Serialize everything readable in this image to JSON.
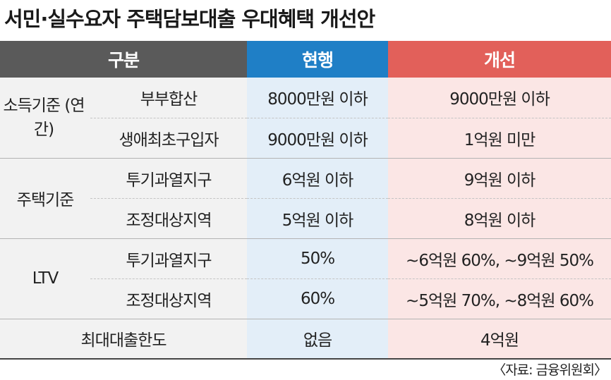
{
  "title": "서민·실수요자 주택담보대출 우대혜택 개선안",
  "header": {
    "category": "구분",
    "current": "현행",
    "improved": "개선"
  },
  "rows": [
    {
      "main": "소득기준 (연간)",
      "subs": [
        {
          "sub": "부부합산",
          "current": "8000만원 이하",
          "improved": "9000만원 이하"
        },
        {
          "sub": "생애최초구입자",
          "current": "9000만원 이하",
          "improved": "1억원 미만"
        }
      ]
    },
    {
      "main": "주택기준",
      "subs": [
        {
          "sub": "투기과열지구",
          "current": "6억원 이하",
          "improved": "9억원 이하"
        },
        {
          "sub": "조정대상지역",
          "current": "5억원 이하",
          "improved": "8억원 이하"
        }
      ]
    },
    {
      "main": "LTV",
      "subs": [
        {
          "sub": "투기과열지구",
          "current": "50%",
          "improved": "~6억원 60%, ~9억원 50%"
        },
        {
          "sub": "조정대상지역",
          "current": "60%",
          "improved": "~5억원 70%, ~8억원 60%"
        }
      ]
    },
    {
      "main": "최대대출한도",
      "current": "없음",
      "improved": "4억원"
    }
  ],
  "source": "〈자료: 금융위원회〉"
}
